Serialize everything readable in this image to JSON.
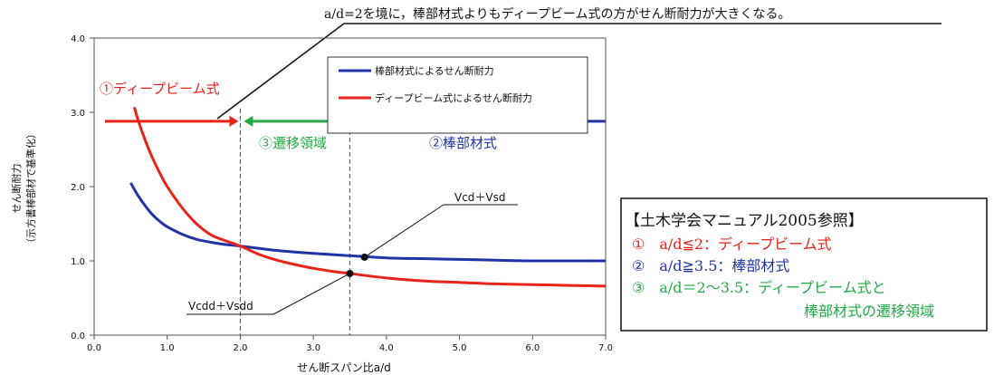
{
  "chart_data": {
    "type": "line",
    "title": "a/d=2を境に，棒部材式よりもディープビーム式の方がせん断耐力が大きくなる。",
    "xlabel": "せん断スパン比a/d",
    "ylabel": "せん断耐力",
    "ylabel_sub": "（示方書棒部材で基準化）",
    "xlim": [
      0,
      7
    ],
    "ylim": [
      0,
      4
    ],
    "x_ticks": [
      "0.0",
      "1.0",
      "2.0",
      "3.0",
      "4.0",
      "5.0",
      "6.0",
      "7.0"
    ],
    "y_ticks": [
      "0.0",
      "1.0",
      "2.0",
      "3.0",
      "4.0"
    ],
    "grid": false,
    "legend_position": "top-right",
    "series": [
      {
        "name": "棒部材式によるせん断耐力",
        "color": "#2233aa",
        "x": [
          0.5,
          0.6,
          0.7,
          0.8,
          0.9,
          1.0,
          1.2,
          1.4,
          1.6,
          1.8,
          2.0,
          2.5,
          3.0,
          3.5,
          4.0,
          4.5,
          5.0,
          5.5,
          6.0,
          6.5,
          7.0
        ],
        "y": [
          2.05,
          1.88,
          1.74,
          1.62,
          1.53,
          1.46,
          1.36,
          1.29,
          1.25,
          1.22,
          1.2,
          1.14,
          1.1,
          1.07,
          1.04,
          1.03,
          1.02,
          1.01,
          1.0,
          1.0,
          1.0
        ]
      },
      {
        "name": "ディープビーム式によるせん断耐力",
        "color": "#e8231a",
        "x": [
          0.55,
          0.6,
          0.7,
          0.8,
          0.9,
          1.0,
          1.2,
          1.4,
          1.6,
          1.8,
          2.0,
          2.25,
          2.5,
          2.75,
          3.0,
          3.25,
          3.5,
          4.0,
          4.5,
          5.0,
          5.5,
          6.0,
          6.5,
          7.0
        ],
        "y": [
          3.07,
          2.9,
          2.62,
          2.38,
          2.18,
          2.0,
          1.72,
          1.5,
          1.35,
          1.27,
          1.2,
          1.09,
          1.01,
          0.95,
          0.9,
          0.86,
          0.83,
          0.77,
          0.73,
          0.71,
          0.69,
          0.68,
          0.67,
          0.66
        ]
      }
    ],
    "points": [
      {
        "label": "Vcd＋Vsd",
        "x": 3.7,
        "y": 1.05
      },
      {
        "label": "Vcdd＋Vsdd",
        "x": 3.5,
        "y": 0.83
      }
    ],
    "boundaries": [
      2.0,
      3.5
    ],
    "regions": [
      {
        "label": "①ディープビーム式",
        "x_from": 0.0,
        "x_to": 2.0,
        "color": "#e8231a"
      },
      {
        "label": "③遷移領域",
        "x_from": 2.0,
        "x_to": 3.5,
        "color": "#22aa44"
      },
      {
        "label": "②棒部材式",
        "x_from": 3.5,
        "x_to": 7.0,
        "color": "#2233aa"
      }
    ]
  },
  "reference_box": {
    "title": "【土木学会マニュアル2005参照】",
    "lines": [
      {
        "text": "①　a/d≦2：ディープビーム式",
        "color": "#e8231a"
      },
      {
        "text": "②　a/d≧3.5：棒部材式",
        "color": "#2233aa"
      },
      {
        "text": "③　a/d＝2～3.5：ディープビーム式と",
        "color": "#22aa44"
      },
      {
        "text": "棒部材式の遷移領域",
        "color": "#22aa44"
      }
    ]
  }
}
